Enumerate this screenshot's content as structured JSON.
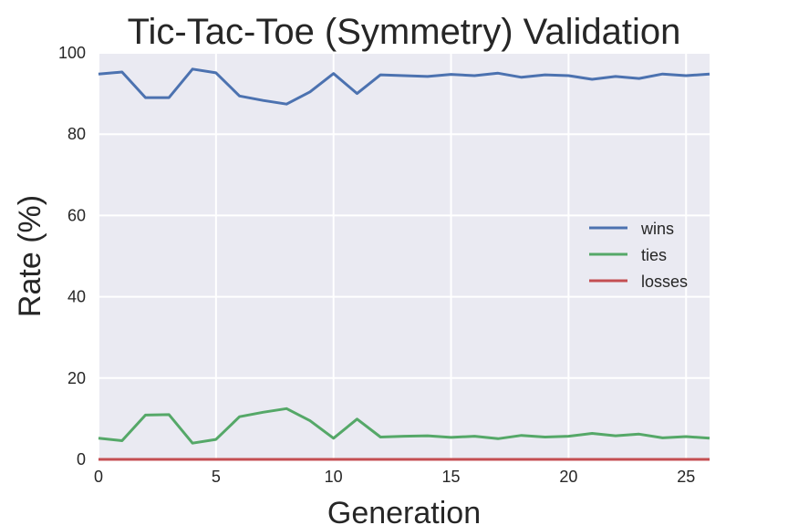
{
  "chart_data": {
    "type": "line",
    "title": "Tic-Tac-Toe (Symmetry) Validation",
    "xlabel": "Generation",
    "ylabel": "Rate (%)",
    "xlim": [
      0,
      26
    ],
    "ylim": [
      0,
      100
    ],
    "xticks": [
      0,
      5,
      10,
      15,
      20,
      25
    ],
    "yticks": [
      0,
      20,
      40,
      60,
      80,
      100
    ],
    "grid": true,
    "legend_position": "center-right",
    "x": [
      0,
      1,
      2,
      3,
      4,
      5,
      6,
      7,
      8,
      9,
      10,
      11,
      12,
      13,
      14,
      15,
      16,
      17,
      18,
      19,
      20,
      21,
      22,
      23,
      24,
      25,
      26
    ],
    "series": [
      {
        "name": "wins",
        "color": "#4c72b0",
        "values": [
          94.8,
          95.3,
          89.0,
          89.0,
          96.0,
          95.1,
          89.4,
          88.3,
          87.4,
          90.4,
          94.9,
          90.0,
          94.6,
          94.4,
          94.2,
          94.7,
          94.4,
          95.0,
          94.0,
          94.6,
          94.4,
          93.5,
          94.2,
          93.7,
          94.8,
          94.4,
          94.8
        ]
      },
      {
        "name": "ties",
        "color": "#55a868",
        "values": [
          5.2,
          4.6,
          10.9,
          11.0,
          4.0,
          4.9,
          10.5,
          11.6,
          12.5,
          9.5,
          5.2,
          9.9,
          5.5,
          5.7,
          5.8,
          5.4,
          5.7,
          5.1,
          5.9,
          5.5,
          5.7,
          6.4,
          5.8,
          6.2,
          5.3,
          5.6,
          5.2
        ]
      },
      {
        "name": "losses",
        "color": "#c44e52",
        "values": [
          0,
          0,
          0,
          0,
          0,
          0,
          0,
          0,
          0,
          0,
          0,
          0,
          0,
          0,
          0,
          0,
          0,
          0,
          0,
          0,
          0,
          0,
          0,
          0,
          0,
          0,
          0
        ]
      }
    ]
  }
}
